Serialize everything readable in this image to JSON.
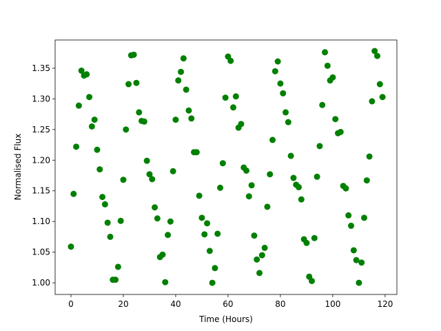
{
  "chart_data": {
    "type": "scatter",
    "x_label": "Time (Hours)",
    "y_label": "Normalised Flux",
    "color": "#008000",
    "grid": false,
    "xlim": [
      -6.05,
      124.5
    ],
    "ylim": [
      0.981,
      1.396
    ],
    "xticks": [
      0,
      20,
      40,
      60,
      80,
      100,
      120
    ],
    "yticks": [
      {
        "value": 1.0,
        "label": "1.00"
      },
      {
        "value": 1.05,
        "label": "1.05"
      },
      {
        "value": 1.1,
        "label": "1.10"
      },
      {
        "value": 1.15,
        "label": "1.15"
      },
      {
        "value": 1.2,
        "label": "1.20"
      },
      {
        "value": 1.25,
        "label": "1.25"
      },
      {
        "value": 1.3,
        "label": "1.30"
      },
      {
        "value": 1.35,
        "label": "1.35"
      }
    ],
    "x": [
      0,
      1,
      2,
      3,
      4,
      5,
      6,
      7,
      8,
      9,
      10,
      11,
      12,
      13,
      14,
      15,
      16,
      17,
      18,
      19,
      20,
      21,
      22,
      23,
      24,
      25,
      26,
      27,
      28,
      29,
      30,
      31,
      32,
      33,
      34,
      35,
      36,
      37,
      38,
      39,
      40,
      41,
      42,
      43,
      44,
      45,
      46,
      47,
      48,
      49,
      50,
      51,
      52,
      53,
      54,
      55,
      56,
      57,
      58,
      59,
      60,
      61,
      62,
      63,
      64,
      65,
      66,
      67,
      68,
      69,
      70,
      71,
      72,
      73,
      74,
      75,
      76,
      77,
      78,
      79,
      80,
      81,
      82,
      83,
      84,
      85,
      86,
      87,
      88,
      89,
      90,
      91,
      92,
      93,
      94,
      95,
      96,
      97,
      98,
      99,
      100,
      101,
      102,
      103,
      104,
      105,
      106,
      107,
      108,
      109,
      110,
      111,
      112,
      113,
      114,
      115,
      116,
      117,
      118,
      119
    ],
    "values": [
      1.059,
      1.145,
      1.222,
      1.289,
      1.346,
      1.338,
      1.34,
      1.303,
      1.255,
      1.266,
      1.217,
      1.185,
      1.14,
      1.128,
      1.098,
      1.075,
      1.005,
      1.005,
      1.026,
      1.101,
      1.168,
      1.25,
      1.324,
      1.371,
      1.372,
      1.326,
      1.278,
      1.264,
      1.263,
      1.199,
      1.177,
      1.169,
      1.123,
      1.105,
      1.042,
      1.046,
      1.001,
      1.078,
      1.1,
      1.182,
      1.266,
      1.33,
      1.344,
      1.366,
      1.315,
      1.281,
      1.268,
      1.213,
      1.213,
      1.142,
      1.106,
      1.079,
      1.097,
      1.052,
      1.0,
      1.024,
      1.08,
      1.155,
      1.195,
      1.302,
      1.369,
      1.362,
      1.286,
      1.304,
      1.253,
      1.259,
      1.188,
      1.183,
      1.141,
      1.159,
      1.077,
      1.038,
      1.016,
      1.045,
      1.057,
      1.124,
      1.177,
      1.233,
      1.345,
      1.361,
      1.325,
      1.309,
      1.278,
      1.262,
      1.207,
      1.171,
      1.16,
      1.156,
      1.136,
      1.071,
      1.065,
      1.01,
      1.003,
      1.073,
      1.173,
      1.223,
      1.29,
      1.376,
      1.354,
      1.33,
      1.335,
      1.267,
      1.244,
      1.246,
      1.158,
      1.154,
      1.11,
      1.093,
      1.053,
      1.037,
      1.0,
      1.033,
      1.106,
      1.167,
      1.206,
      1.296,
      1.378,
      1.37,
      1.324,
      1.303
    ]
  }
}
